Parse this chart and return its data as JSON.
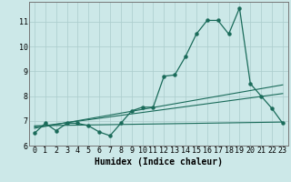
{
  "xlabel": "Humidex (Indice chaleur)",
  "bg_color": "#cce8e8",
  "grid_color": "#aacccc",
  "line_color": "#1a6b5a",
  "spine_color": "#777777",
  "xlim": [
    -0.5,
    23.5
  ],
  "ylim": [
    6.0,
    11.8
  ],
  "yticks": [
    6,
    7,
    8,
    9,
    10,
    11
  ],
  "xticks": [
    0,
    1,
    2,
    3,
    4,
    5,
    6,
    7,
    8,
    9,
    10,
    11,
    12,
    13,
    14,
    15,
    16,
    17,
    18,
    19,
    20,
    21,
    22,
    23
  ],
  "main_x": [
    0,
    1,
    2,
    3,
    4,
    5,
    6,
    7,
    8,
    9,
    10,
    11,
    12,
    13,
    14,
    15,
    16,
    17,
    18,
    19,
    20,
    21,
    22,
    23
  ],
  "main_y": [
    6.5,
    6.9,
    6.6,
    6.9,
    6.9,
    6.8,
    6.55,
    6.4,
    6.9,
    7.4,
    7.55,
    7.55,
    8.8,
    8.85,
    9.6,
    10.5,
    11.05,
    11.05,
    10.5,
    11.55,
    8.5,
    8.0,
    7.5,
    6.9
  ],
  "reg_lines": [
    [
      6.7,
      8.45
    ],
    [
      6.75,
      8.1
    ],
    [
      6.8,
      6.95
    ]
  ],
  "xlabel_fontsize": 7,
  "tick_fontsize": 6
}
